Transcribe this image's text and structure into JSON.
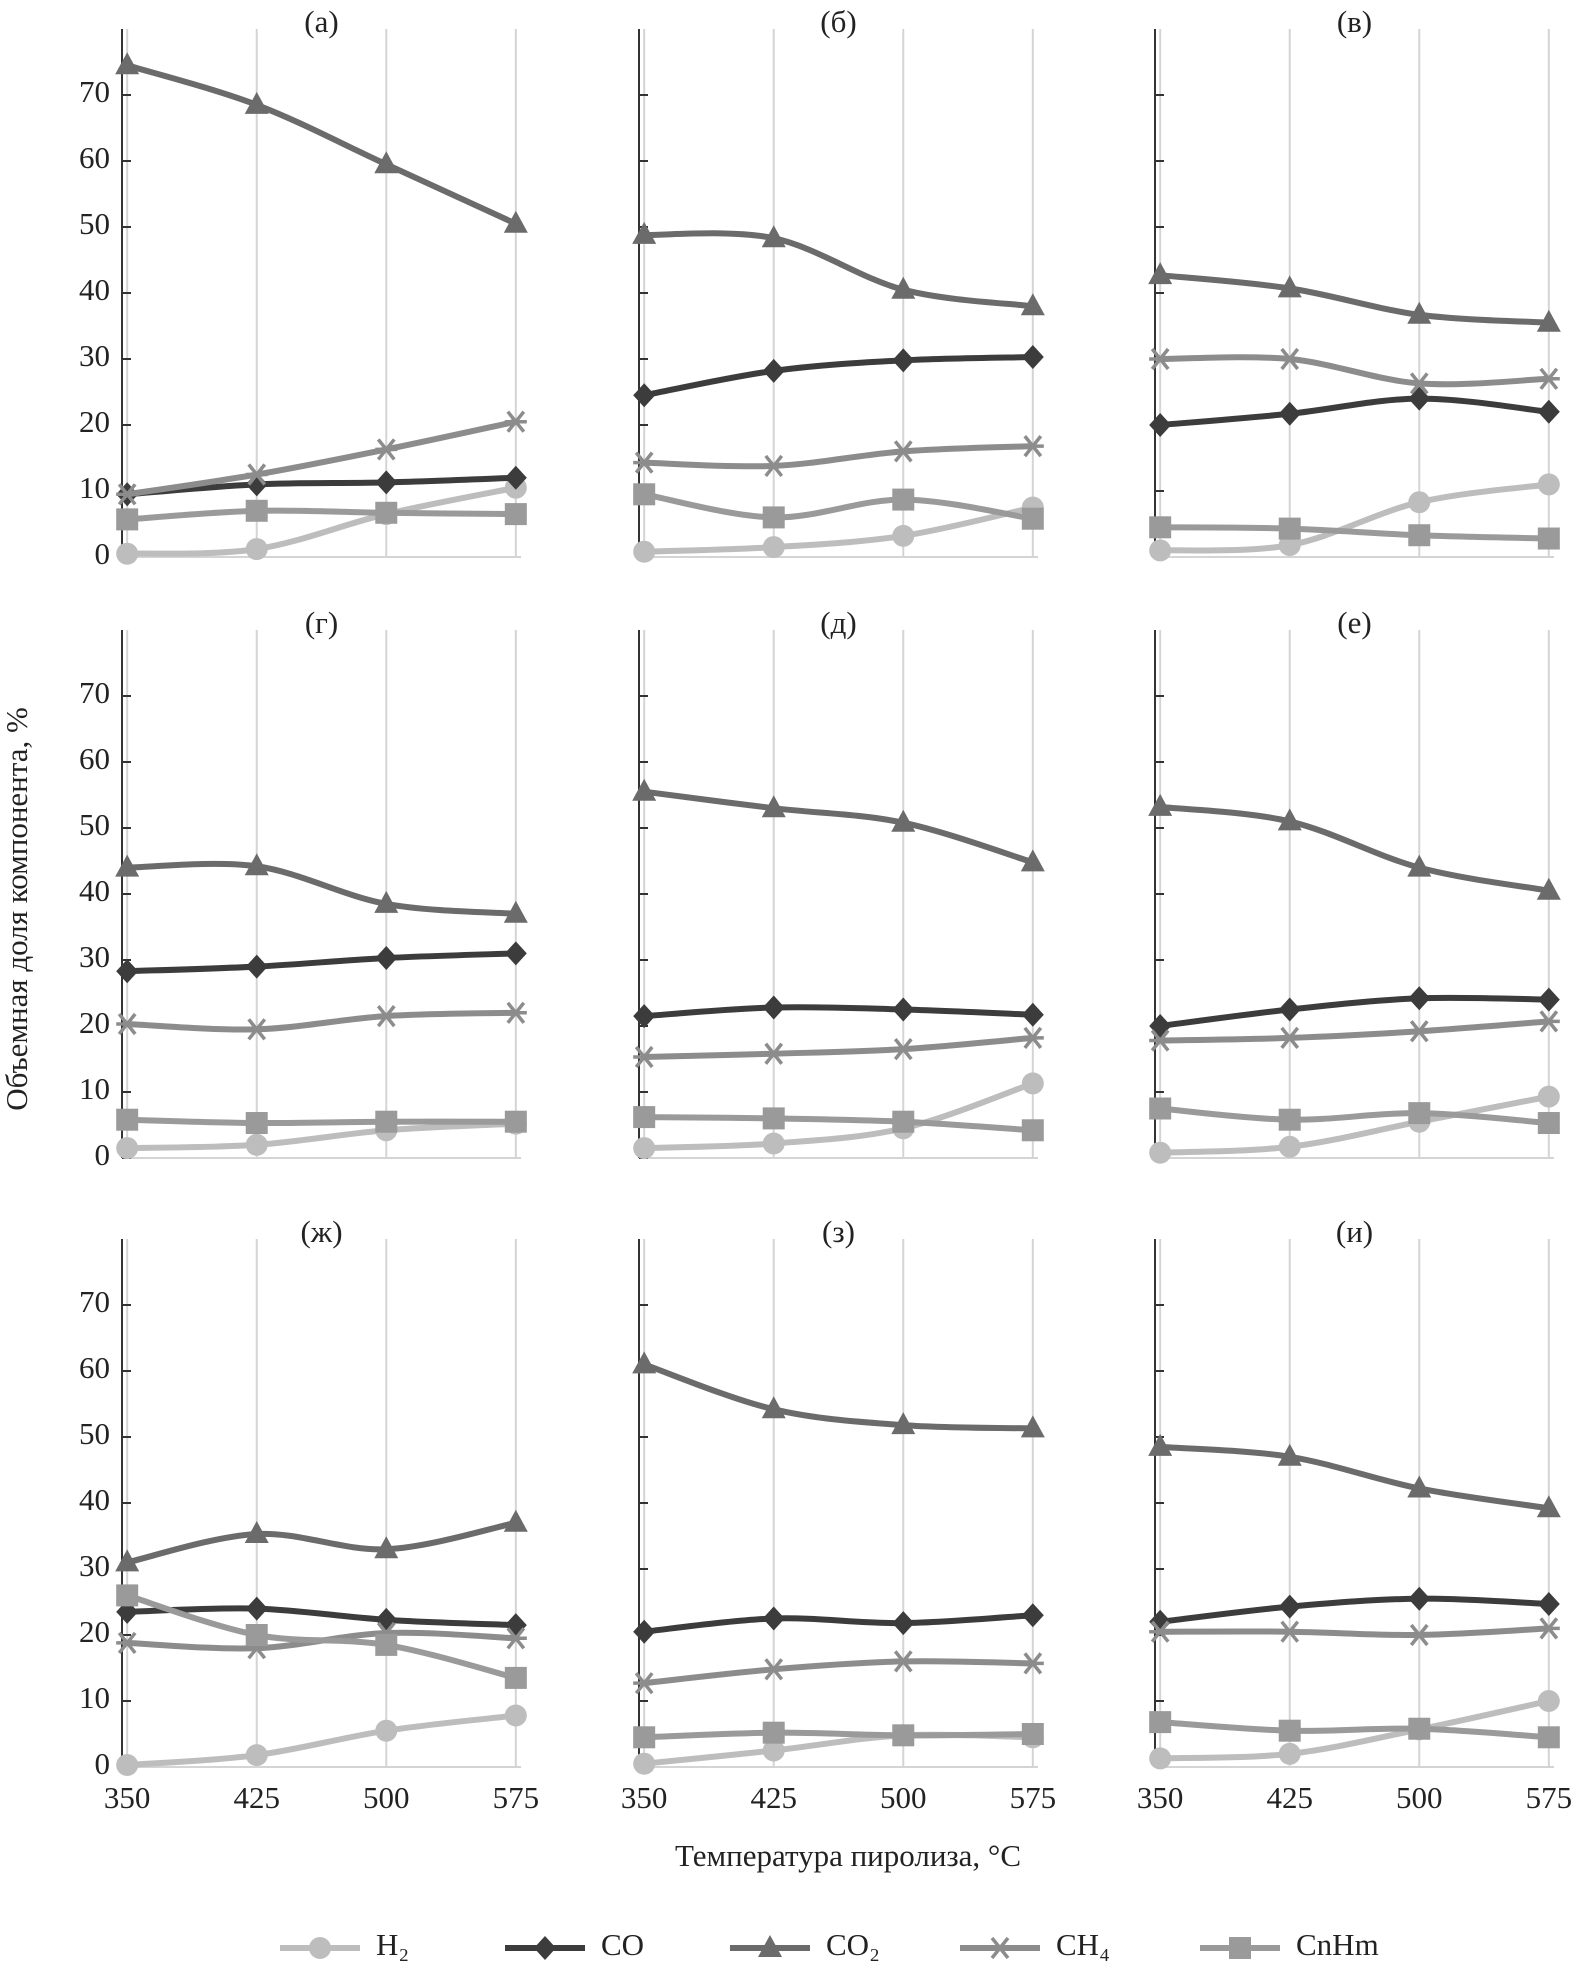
{
  "ylabel": "Объемная доля компонента, %",
  "xlabel": "Температура пиролиза, °C",
  "chart_data": [
    {
      "type": "line",
      "title": "(а)",
      "x": [
        350,
        425,
        500,
        575
      ],
      "xlim": [
        347,
        578
      ],
      "xticks": [
        350,
        425,
        500,
        575
      ],
      "ylim": [
        0,
        80
      ],
      "yticks": [
        0,
        10,
        20,
        30,
        40,
        50,
        60,
        70
      ],
      "grid": true,
      "series": [
        {
          "name": "H₂",
          "color": "#bdbdbd",
          "marker": "circle",
          "values": [
            0.5,
            1.2,
            6.5,
            10.5
          ]
        },
        {
          "name": "CO",
          "color": "#3c3c3c",
          "marker": "diamond",
          "values": [
            9.5,
            11,
            11.3,
            12
          ]
        },
        {
          "name": "CO₂",
          "color": "#6b6b6b",
          "marker": "triangle",
          "values": [
            74.5,
            68.5,
            59.5,
            50.5
          ]
        },
        {
          "name": "CH₄",
          "color": "#8c8c8c",
          "marker": "star",
          "values": [
            9.5,
            12.5,
            16.3,
            20.5
          ]
        },
        {
          "name": "CnHm",
          "color": "#9a9a9a",
          "marker": "square",
          "values": [
            5.7,
            7,
            6.7,
            6.5
          ]
        }
      ]
    },
    {
      "type": "line",
      "title": "(б)",
      "x": [
        350,
        425,
        500,
        575
      ],
      "xlim": [
        347,
        578
      ],
      "xticks": [
        350,
        425,
        500,
        575
      ],
      "ylim": [
        0,
        80
      ],
      "yticks": [
        0,
        10,
        20,
        30,
        40,
        50,
        60,
        70
      ],
      "grid": true,
      "series": [
        {
          "name": "H₂",
          "color": "#bdbdbd",
          "marker": "circle",
          "values": [
            0.8,
            1.5,
            3.2,
            7.5
          ]
        },
        {
          "name": "CO",
          "color": "#3c3c3c",
          "marker": "diamond",
          "values": [
            24.5,
            28.2,
            29.8,
            30.3
          ]
        },
        {
          "name": "CO₂",
          "color": "#6b6b6b",
          "marker": "triangle",
          "values": [
            48.8,
            48.3,
            40.5,
            38
          ]
        },
        {
          "name": "CH₄",
          "color": "#8c8c8c",
          "marker": "star",
          "values": [
            14.3,
            13.8,
            16,
            16.8
          ]
        },
        {
          "name": "CnHm",
          "color": "#9a9a9a",
          "marker": "square",
          "values": [
            9.5,
            6,
            8.7,
            5.8
          ]
        }
      ]
    },
    {
      "type": "line",
      "title": "(в)",
      "x": [
        350,
        425,
        500,
        575
      ],
      "xlim": [
        347,
        578
      ],
      "xticks": [
        350,
        425,
        500,
        575
      ],
      "ylim": [
        0,
        80
      ],
      "yticks": [
        0,
        10,
        20,
        30,
        40,
        50,
        60,
        70
      ],
      "grid": true,
      "series": [
        {
          "name": "H₂",
          "color": "#bdbdbd",
          "marker": "circle",
          "values": [
            1,
            1.8,
            8.3,
            11
          ]
        },
        {
          "name": "CO",
          "color": "#3c3c3c",
          "marker": "diamond",
          "values": [
            20,
            21.7,
            24,
            22
          ]
        },
        {
          "name": "CO₂",
          "color": "#6b6b6b",
          "marker": "triangle",
          "values": [
            42.7,
            40.7,
            36.7,
            35.5
          ]
        },
        {
          "name": "CH₄",
          "color": "#8c8c8c",
          "marker": "star",
          "values": [
            30,
            30,
            26.3,
            27
          ]
        },
        {
          "name": "CnHm",
          "color": "#9a9a9a",
          "marker": "square",
          "values": [
            4.5,
            4.3,
            3.3,
            2.8
          ]
        }
      ]
    },
    {
      "type": "line",
      "title": "(г)",
      "x": [
        350,
        425,
        500,
        575
      ],
      "xlim": [
        347,
        578
      ],
      "xticks": [
        350,
        425,
        500,
        575
      ],
      "ylim": [
        0,
        80
      ],
      "yticks": [
        0,
        10,
        20,
        30,
        40,
        50,
        60,
        70
      ],
      "grid": true,
      "series": [
        {
          "name": "H₂",
          "color": "#bdbdbd",
          "marker": "circle",
          "values": [
            1.5,
            2,
            4.2,
            5.2
          ]
        },
        {
          "name": "CO",
          "color": "#3c3c3c",
          "marker": "diamond",
          "values": [
            28.3,
            29,
            30.3,
            31
          ]
        },
        {
          "name": "CO₂",
          "color": "#6b6b6b",
          "marker": "triangle",
          "values": [
            44,
            44.2,
            38.5,
            37
          ]
        },
        {
          "name": "CH₄",
          "color": "#8c8c8c",
          "marker": "star",
          "values": [
            20.3,
            19.5,
            21.5,
            22
          ]
        },
        {
          "name": "CnHm",
          "color": "#9a9a9a",
          "marker": "square",
          "values": [
            5.8,
            5.3,
            5.5,
            5.5
          ]
        }
      ]
    },
    {
      "type": "line",
      "title": "(д)",
      "x": [
        350,
        425,
        500,
        575
      ],
      "xlim": [
        347,
        578
      ],
      "xticks": [
        350,
        425,
        500,
        575
      ],
      "ylim": [
        0,
        80
      ],
      "yticks": [
        0,
        10,
        20,
        30,
        40,
        50,
        60,
        70
      ],
      "grid": true,
      "series": [
        {
          "name": "H₂",
          "color": "#bdbdbd",
          "marker": "circle",
          "values": [
            1.5,
            2.2,
            4.5,
            11.3
          ]
        },
        {
          "name": "CO",
          "color": "#3c3c3c",
          "marker": "diamond",
          "values": [
            21.5,
            22.8,
            22.5,
            21.7
          ]
        },
        {
          "name": "CO₂",
          "color": "#6b6b6b",
          "marker": "triangle",
          "values": [
            55.5,
            53,
            50.8,
            44.8
          ]
        },
        {
          "name": "CH₄",
          "color": "#8c8c8c",
          "marker": "star",
          "values": [
            15.3,
            15.8,
            16.5,
            18.2
          ]
        },
        {
          "name": "CnHm",
          "color": "#9a9a9a",
          "marker": "square",
          "values": [
            6.2,
            6,
            5.5,
            4.2
          ]
        }
      ]
    },
    {
      "type": "line",
      "title": "(е)",
      "x": [
        350,
        425,
        500,
        575
      ],
      "xlim": [
        347,
        578
      ],
      "xticks": [
        350,
        425,
        500,
        575
      ],
      "ylim": [
        0,
        80
      ],
      "yticks": [
        0,
        10,
        20,
        30,
        40,
        50,
        60,
        70
      ],
      "grid": true,
      "series": [
        {
          "name": "H₂",
          "color": "#bdbdbd",
          "marker": "circle",
          "values": [
            0.8,
            1.7,
            5.5,
            9.3
          ]
        },
        {
          "name": "CO",
          "color": "#3c3c3c",
          "marker": "diamond",
          "values": [
            20,
            22.5,
            24.2,
            24
          ]
        },
        {
          "name": "CO₂",
          "color": "#6b6b6b",
          "marker": "triangle",
          "values": [
            53.2,
            51,
            44,
            40.5
          ]
        },
        {
          "name": "CH₄",
          "color": "#8c8c8c",
          "marker": "star",
          "values": [
            17.8,
            18.2,
            19.2,
            20.7
          ]
        },
        {
          "name": "CnHm",
          "color": "#9a9a9a",
          "marker": "square",
          "values": [
            7.5,
            5.8,
            6.8,
            5.3
          ]
        }
      ]
    },
    {
      "type": "line",
      "title": "(ж)",
      "x": [
        350,
        425,
        500,
        575
      ],
      "xlim": [
        347,
        578
      ],
      "xticks": [
        350,
        425,
        500,
        575
      ],
      "ylim": [
        0,
        80
      ],
      "yticks": [
        0,
        10,
        20,
        30,
        40,
        50,
        60,
        70
      ],
      "grid": true,
      "series": [
        {
          "name": "H₂",
          "color": "#bdbdbd",
          "marker": "circle",
          "values": [
            0.3,
            1.8,
            5.5,
            7.8
          ]
        },
        {
          "name": "CO",
          "color": "#3c3c3c",
          "marker": "diamond",
          "values": [
            23.5,
            24,
            22.3,
            21.5
          ]
        },
        {
          "name": "CO₂",
          "color": "#6b6b6b",
          "marker": "triangle",
          "values": [
            31,
            35.3,
            33,
            37
          ]
        },
        {
          "name": "CH₄",
          "color": "#8c8c8c",
          "marker": "star",
          "values": [
            18.8,
            18,
            20.3,
            19.5
          ]
        },
        {
          "name": "CnHm",
          "color": "#9a9a9a",
          "marker": "square",
          "values": [
            26,
            20,
            18.5,
            13.5
          ]
        }
      ]
    },
    {
      "type": "line",
      "title": "(з)",
      "x": [
        350,
        425,
        500,
        575
      ],
      "xlim": [
        347,
        578
      ],
      "xticks": [
        350,
        425,
        500,
        575
      ],
      "ylim": [
        0,
        80
      ],
      "yticks": [
        0,
        10,
        20,
        30,
        40,
        50,
        60,
        70
      ],
      "grid": true,
      "series": [
        {
          "name": "H₂",
          "color": "#bdbdbd",
          "marker": "circle",
          "values": [
            0.5,
            2.5,
            4.8,
            4.5
          ]
        },
        {
          "name": "CO",
          "color": "#3c3c3c",
          "marker": "diamond",
          "values": [
            20.5,
            22.5,
            21.8,
            23
          ]
        },
        {
          "name": "CO₂",
          "color": "#6b6b6b",
          "marker": "triangle",
          "values": [
            61,
            54.2,
            51.8,
            51.3
          ]
        },
        {
          "name": "CH₄",
          "color": "#8c8c8c",
          "marker": "star",
          "values": [
            12.7,
            14.8,
            16,
            15.7
          ]
        },
        {
          "name": "CnHm",
          "color": "#9a9a9a",
          "marker": "square",
          "values": [
            4.5,
            5.2,
            4.8,
            5
          ]
        }
      ]
    },
    {
      "type": "line",
      "title": "(и)",
      "x": [
        350,
        425,
        500,
        575
      ],
      "xlim": [
        347,
        578
      ],
      "xticks": [
        350,
        425,
        500,
        575
      ],
      "ylim": [
        0,
        80
      ],
      "yticks": [
        0,
        10,
        20,
        30,
        40,
        50,
        60,
        70
      ],
      "grid": true,
      "series": [
        {
          "name": "H₂",
          "color": "#bdbdbd",
          "marker": "circle",
          "values": [
            1.3,
            2,
            5.7,
            10
          ]
        },
        {
          "name": "CO",
          "color": "#3c3c3c",
          "marker": "diamond",
          "values": [
            22,
            24.3,
            25.5,
            24.7
          ]
        },
        {
          "name": "CO₂",
          "color": "#6b6b6b",
          "marker": "triangle",
          "values": [
            48.5,
            47,
            42.2,
            39.2
          ]
        },
        {
          "name": "CH₄",
          "color": "#8c8c8c",
          "marker": "star",
          "values": [
            20.5,
            20.5,
            20,
            21
          ]
        },
        {
          "name": "CnHm",
          "color": "#9a9a9a",
          "marker": "square",
          "values": [
            6.8,
            5.5,
            5.8,
            4.5
          ]
        }
      ]
    }
  ]
}
